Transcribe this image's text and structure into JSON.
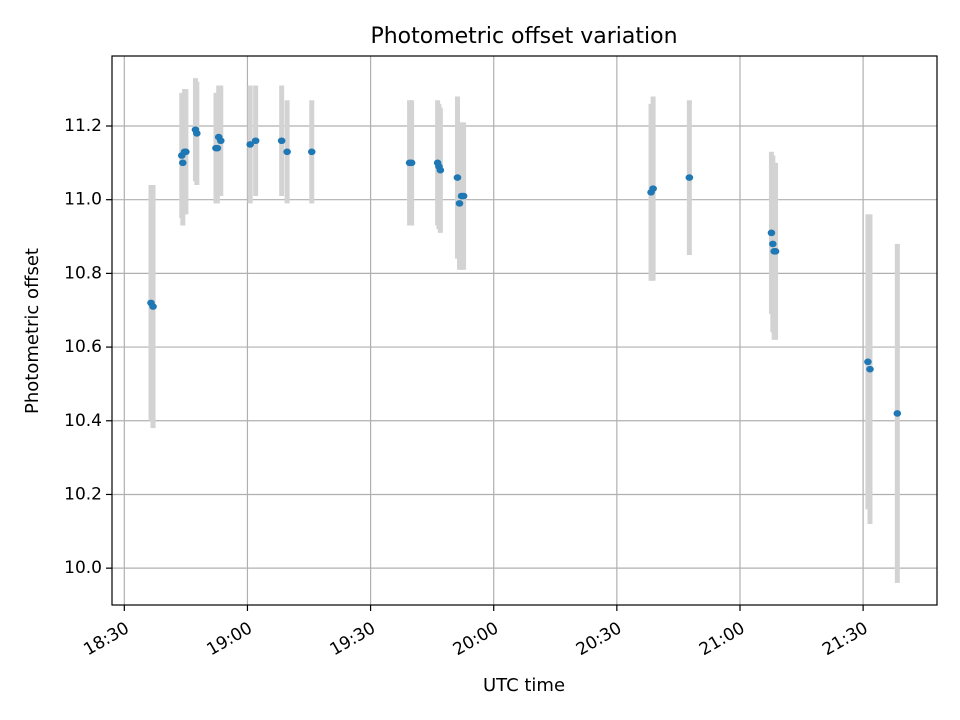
{
  "chart_data": {
    "type": "scatter",
    "title": "Photometric offset variation",
    "xlabel": "UTC time",
    "ylabel": "Photometric offset",
    "x_axis_type": "time",
    "xlim": [
      "18:27",
      "21:48"
    ],
    "ylim": [
      9.9,
      11.39
    ],
    "x_ticks": [
      "18:30",
      "19:00",
      "19:30",
      "20:00",
      "20:30",
      "21:00",
      "21:30"
    ],
    "y_ticks": [
      "10.0",
      "10.2",
      "10.4",
      "10.6",
      "10.8",
      "11.0",
      "11.2"
    ],
    "grid": true,
    "legend": "none",
    "colors": {
      "point": "#1f77b4",
      "errorbar": "#d3d3d3",
      "grid": "#b0b0b0"
    },
    "points": [
      {
        "t": "18:36:30",
        "y": 10.72,
        "err": 0.32
      },
      {
        "t": "18:37:00",
        "y": 10.71,
        "err": 0.33
      },
      {
        "t": "18:44:00",
        "y": 11.12,
        "err": 0.17
      },
      {
        "t": "18:44:15",
        "y": 11.1,
        "err": 0.17
      },
      {
        "t": "18:44:40",
        "y": 11.13,
        "err": 0.17
      },
      {
        "t": "18:45:00",
        "y": 11.13,
        "err": 0.17
      },
      {
        "t": "18:47:20",
        "y": 11.19,
        "err": 0.14
      },
      {
        "t": "18:47:40",
        "y": 11.18,
        "err": 0.14
      },
      {
        "t": "18:52:20",
        "y": 11.14,
        "err": 0.15
      },
      {
        "t": "18:52:40",
        "y": 11.14,
        "err": 0.15
      },
      {
        "t": "18:53:00",
        "y": 11.17,
        "err": 0.14
      },
      {
        "t": "18:53:30",
        "y": 11.16,
        "err": 0.15
      },
      {
        "t": "19:00:40",
        "y": 11.15,
        "err": 0.16
      },
      {
        "t": "19:02:00",
        "y": 11.16,
        "err": 0.15
      },
      {
        "t": "19:08:20",
        "y": 11.16,
        "err": 0.15
      },
      {
        "t": "19:09:40",
        "y": 11.13,
        "err": 0.14
      },
      {
        "t": "19:15:40",
        "y": 11.13,
        "err": 0.14
      },
      {
        "t": "19:39:30",
        "y": 11.1,
        "err": 0.17
      },
      {
        "t": "19:40:00",
        "y": 11.1,
        "err": 0.17
      },
      {
        "t": "19:46:20",
        "y": 11.1,
        "err": 0.17
      },
      {
        "t": "19:46:40",
        "y": 11.09,
        "err": 0.17
      },
      {
        "t": "19:47:00",
        "y": 11.08,
        "err": 0.17
      },
      {
        "t": "19:51:10",
        "y": 11.06,
        "err": 0.22
      },
      {
        "t": "19:51:40",
        "y": 10.99,
        "err": 0.18
      },
      {
        "t": "19:52:10",
        "y": 11.01,
        "err": 0.2
      },
      {
        "t": "19:52:40",
        "y": 11.01,
        "err": 0.2
      },
      {
        "t": "20:38:20",
        "y": 11.02,
        "err": 0.24
      },
      {
        "t": "20:38:50",
        "y": 11.03,
        "err": 0.25
      },
      {
        "t": "20:47:40",
        "y": 11.06,
        "err": 0.21
      },
      {
        "t": "21:07:40",
        "y": 10.91,
        "err": 0.22
      },
      {
        "t": "21:08:00",
        "y": 10.88,
        "err": 0.24
      },
      {
        "t": "21:08:20",
        "y": 10.86,
        "err": 0.24
      },
      {
        "t": "21:08:40",
        "y": 10.86,
        "err": 0.24
      },
      {
        "t": "21:31:10",
        "y": 10.56,
        "err": 0.4
      },
      {
        "t": "21:31:40",
        "y": 10.54,
        "err": 0.42
      },
      {
        "t": "21:38:20",
        "y": 10.42,
        "err": 0.46
      }
    ]
  }
}
